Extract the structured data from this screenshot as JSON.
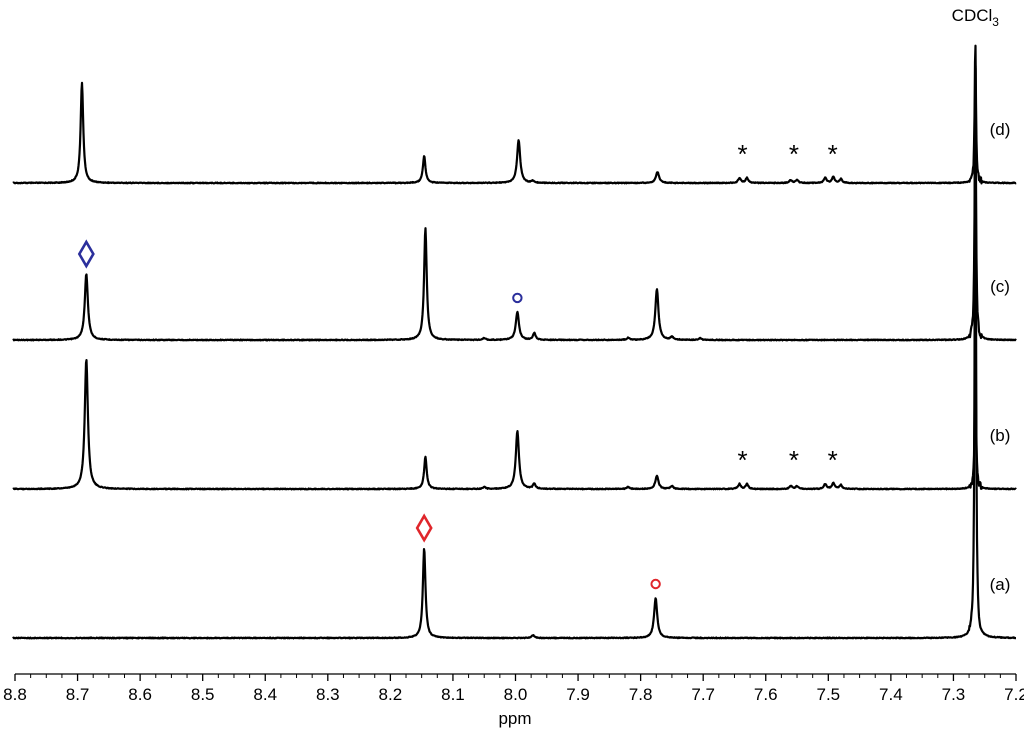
{
  "chart_data": {
    "type": "line",
    "title": "",
    "xlabel": "ppm",
    "ylabel": "",
    "x_reversed": true,
    "xlim": [
      8.8,
      7.2
    ],
    "xticks": [
      "8.8",
      "8.7",
      "8.6",
      "8.5",
      "8.4",
      "8.3",
      "8.2",
      "8.1",
      "8.0",
      "7.9",
      "7.8",
      "7.7",
      "7.6",
      "7.5",
      "7.4",
      "7.3",
      "7.2"
    ],
    "y_axis_shown": false,
    "grid": false,
    "solvent_label": {
      "pre": "CDCl",
      "sub": "3",
      "ppm": 7.265
    },
    "series": [
      {
        "name": "(d)",
        "peaks": [
          {
            "ppm": 8.693,
            "h": 1.0,
            "w": 0.0025
          },
          {
            "ppm": 8.146,
            "h": 0.27,
            "w": 0.0025
          },
          {
            "ppm": 7.995,
            "h": 0.43,
            "w": 0.003
          },
          {
            "ppm": 7.972,
            "h": 0.02,
            "w": 0.0025
          },
          {
            "ppm": 7.773,
            "h": 0.11,
            "w": 0.003
          },
          {
            "ppm": 7.642,
            "h": 0.05,
            "w": 0.0025
          },
          {
            "ppm": 7.63,
            "h": 0.05,
            "w": 0.0025
          },
          {
            "ppm": 7.56,
            "h": 0.03,
            "w": 0.0025
          },
          {
            "ppm": 7.55,
            "h": 0.03,
            "w": 0.0025
          },
          {
            "ppm": 7.505,
            "h": 0.05,
            "w": 0.0025
          },
          {
            "ppm": 7.492,
            "h": 0.06,
            "w": 0.0025
          },
          {
            "ppm": 7.48,
            "h": 0.04,
            "w": 0.0025
          },
          {
            "ppm": 7.265,
            "h": 1.45,
            "w": 0.0012
          }
        ],
        "markers": [
          {
            "type": "asterisk",
            "ppm": 7.637
          },
          {
            "type": "asterisk",
            "ppm": 7.555
          },
          {
            "type": "asterisk",
            "ppm": 7.493
          }
        ]
      },
      {
        "name": "(c)",
        "peaks": [
          {
            "ppm": 8.686,
            "h": 0.66,
            "w": 0.003
          },
          {
            "ppm": 8.144,
            "h": 1.12,
            "w": 0.0025
          },
          {
            "ppm": 8.05,
            "h": 0.02,
            "w": 0.0025
          },
          {
            "ppm": 7.997,
            "h": 0.28,
            "w": 0.003
          },
          {
            "ppm": 7.97,
            "h": 0.07,
            "w": 0.0025
          },
          {
            "ppm": 7.82,
            "h": 0.02,
            "w": 0.0025
          },
          {
            "ppm": 7.774,
            "h": 0.51,
            "w": 0.003
          },
          {
            "ppm": 7.75,
            "h": 0.03,
            "w": 0.0025
          },
          {
            "ppm": 7.705,
            "h": 0.02,
            "w": 0.0025
          },
          {
            "ppm": 7.265,
            "h": 2.85,
            "w": 0.0012
          }
        ],
        "markers": [
          {
            "type": "diamond",
            "ppm": 8.686,
            "color": "#2b2f9c"
          },
          {
            "type": "circle",
            "ppm": 7.997,
            "color": "#2b2f9c"
          }
        ]
      },
      {
        "name": "(b)",
        "peaks": [
          {
            "ppm": 8.686,
            "h": 1.3,
            "w": 0.003
          },
          {
            "ppm": 8.144,
            "h": 0.32,
            "w": 0.0025
          },
          {
            "ppm": 8.05,
            "h": 0.02,
            "w": 0.0025
          },
          {
            "ppm": 7.997,
            "h": 0.58,
            "w": 0.003
          },
          {
            "ppm": 7.97,
            "h": 0.05,
            "w": 0.0025
          },
          {
            "ppm": 7.82,
            "h": 0.02,
            "w": 0.0025
          },
          {
            "ppm": 7.774,
            "h": 0.13,
            "w": 0.003
          },
          {
            "ppm": 7.75,
            "h": 0.03,
            "w": 0.0025
          },
          {
            "ppm": 7.642,
            "h": 0.05,
            "w": 0.0025
          },
          {
            "ppm": 7.63,
            "h": 0.05,
            "w": 0.0025
          },
          {
            "ppm": 7.56,
            "h": 0.03,
            "w": 0.0025
          },
          {
            "ppm": 7.55,
            "h": 0.03,
            "w": 0.0025
          },
          {
            "ppm": 7.505,
            "h": 0.05,
            "w": 0.0025
          },
          {
            "ppm": 7.492,
            "h": 0.06,
            "w": 0.0025
          },
          {
            "ppm": 7.48,
            "h": 0.04,
            "w": 0.0025
          },
          {
            "ppm": 7.265,
            "h": 1.5,
            "w": 0.0012
          }
        ],
        "markers": [
          {
            "type": "asterisk",
            "ppm": 7.637
          },
          {
            "type": "asterisk",
            "ppm": 7.555
          },
          {
            "type": "asterisk",
            "ppm": 7.493
          }
        ]
      },
      {
        "name": "(a)",
        "peaks": [
          {
            "ppm": 8.146,
            "h": 0.9,
            "w": 0.0025
          },
          {
            "ppm": 7.972,
            "h": 0.03,
            "w": 0.0025
          },
          {
            "ppm": 7.776,
            "h": 0.4,
            "w": 0.003
          },
          {
            "ppm": 7.265,
            "h": 6.0,
            "w": 0.0012
          }
        ],
        "markers": [
          {
            "type": "diamond",
            "ppm": 8.146,
            "color": "#e0262b"
          },
          {
            "type": "circle",
            "ppm": 7.776,
            "color": "#e0262b"
          }
        ]
      }
    ]
  }
}
